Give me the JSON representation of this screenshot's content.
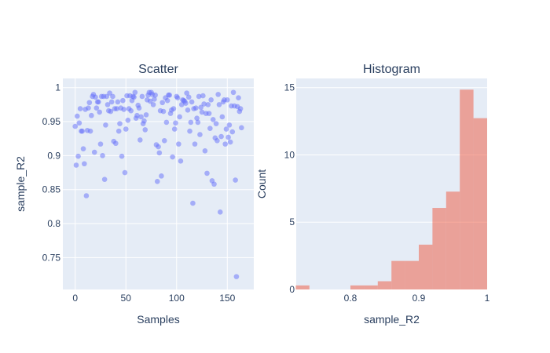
{
  "chart_data": [
    {
      "type": "scatter",
      "title": "Scatter",
      "xlabel": "Samples",
      "ylabel": "sample_R2",
      "xlim": [
        -12,
        176
      ],
      "ylim": [
        0.705,
        1.014
      ],
      "xticks": [
        0,
        50,
        100,
        150
      ],
      "xtick_labels": [
        "0",
        "50",
        "100",
        "150"
      ],
      "yticks": [
        0.75,
        0.8,
        0.85,
        0.9,
        0.95,
        1
      ],
      "ytick_labels": [
        "0.75",
        "0.8",
        "0.85",
        "0.9",
        "0.95",
        "1"
      ],
      "grid": true,
      "marker_color": "#636efa",
      "marker_opacity": 0.5,
      "x": [
        0,
        1,
        2,
        3,
        4,
        5,
        6,
        7,
        8,
        9,
        10,
        11,
        12,
        13,
        14,
        15,
        16,
        17,
        18,
        19,
        20,
        21,
        22,
        23,
        24,
        25,
        26,
        27,
        28,
        29,
        30,
        31,
        32,
        33,
        34,
        35,
        36,
        37,
        38,
        39,
        40,
        41,
        42,
        43,
        44,
        45,
        46,
        47,
        48,
        49,
        50,
        51,
        52,
        53,
        54,
        55,
        56,
        57,
        58,
        59,
        60,
        61,
        62,
        63,
        64,
        65,
        66,
        67,
        68,
        69,
        70,
        71,
        72,
        73,
        74,
        75,
        76,
        77,
        78,
        79,
        80,
        81,
        82,
        83,
        84,
        85,
        86,
        87,
        88,
        89,
        90,
        91,
        92,
        93,
        94,
        95,
        96,
        97,
        98,
        99,
        100,
        101,
        102,
        103,
        104,
        105,
        106,
        107,
        108,
        109,
        110,
        111,
        112,
        113,
        114,
        115,
        116,
        117,
        118,
        119,
        120,
        121,
        122,
        123,
        124,
        125,
        126,
        127,
        128,
        129,
        130,
        131,
        132,
        133,
        134,
        135,
        136,
        137,
        138,
        139,
        140,
        141,
        142,
        143,
        144,
        145,
        146,
        147,
        148,
        149,
        150,
        151,
        152,
        153,
        154,
        155,
        156,
        157,
        158,
        159,
        160,
        161,
        162,
        163,
        164
      ],
      "y": [
        0.943,
        0.886,
        0.958,
        0.899,
        0.948,
        0.969,
        0.936,
        0.936,
        0.91,
        0.888,
        0.968,
        0.841,
        0.937,
        0.97,
        0.978,
        0.936,
        0.959,
        0.987,
        0.99,
        0.905,
        0.986,
        0.97,
        0.979,
        0.979,
        0.964,
        0.917,
        0.987,
        0.9,
        0.987,
        0.865,
        0.945,
        0.987,
        0.975,
        0.966,
        0.992,
        0.965,
        0.979,
        0.987,
        0.921,
        0.969,
        0.918,
        0.969,
        0.979,
        0.936,
        0.947,
        0.97,
        0.899,
        0.981,
        0.968,
        0.875,
        0.939,
        0.988,
        0.952,
        0.969,
        0.988,
        0.966,
        0.981,
        0.987,
        0.986,
        0.993,
        0.955,
        0.959,
        0.974,
        0.97,
        0.923,
        0.957,
        0.987,
        0.947,
        0.951,
        0.938,
        0.96,
        0.982,
        0.989,
        0.993,
        0.98,
        0.993,
        0.99,
        0.975,
        0.983,
        0.989,
        0.916,
        0.862,
        0.913,
        0.904,
        0.966,
        0.87,
        0.978,
        0.965,
        0.922,
        0.985,
        0.949,
        0.981,
        0.989,
        0.989,
        0.962,
        0.967,
        0.898,
        0.969,
        0.939,
        0.948,
        0.987,
        0.985,
        0.917,
        0.957,
        0.892,
        0.975,
        0.982,
        0.981,
        0.98,
        0.977,
        0.992,
        0.967,
        0.986,
        0.936,
        0.949,
        0.979,
        0.83,
        0.969,
        0.917,
        0.97,
        0.955,
        0.949,
        0.987,
        0.931,
        0.971,
        0.964,
        0.988,
        0.976,
        0.907,
        0.962,
        0.874,
        0.975,
        0.962,
        0.94,
        0.982,
        0.863,
        0.953,
        0.858,
        0.926,
        0.947,
        0.922,
        0.99,
        0.975,
        0.817,
        0.928,
        0.957,
        0.979,
        0.982,
        0.917,
        0.939,
        0.982,
        0.927,
        0.945,
        0.92,
        0.973,
        0.935,
        0.993,
        0.973,
        0.864,
        0.722,
        0.972,
        0.985,
        0.965,
        0.969,
        0.941
      ]
    },
    {
      "type": "bar",
      "subtype": "histogram",
      "title": "Histogram",
      "xlabel": "sample_R2",
      "ylabel": "Count",
      "xlim": [
        0.72,
        1.0
      ],
      "ylim": [
        0,
        15.6
      ],
      "xticks": [
        0.8,
        0.9,
        1
      ],
      "xtick_labels": [
        "0.8",
        "0.9",
        "1"
      ],
      "yticks": [
        0,
        5,
        10,
        15
      ],
      "ytick_labels": [
        "0",
        "5",
        "10",
        "15"
      ],
      "grid": true,
      "bar_color": "#EF553B",
      "bar_opacity": 0.5,
      "bin_width": 0.02,
      "bins": [
        {
          "start": 0.72,
          "end": 0.74,
          "value": 0.3
        },
        {
          "start": 0.74,
          "end": 0.76,
          "value": 0
        },
        {
          "start": 0.76,
          "end": 0.78,
          "value": 0
        },
        {
          "start": 0.78,
          "end": 0.8,
          "value": 0
        },
        {
          "start": 0.8,
          "end": 0.82,
          "value": 0.3
        },
        {
          "start": 0.82,
          "end": 0.84,
          "value": 0.3
        },
        {
          "start": 0.84,
          "end": 0.86,
          "value": 0.61
        },
        {
          "start": 0.86,
          "end": 0.88,
          "value": 2.12
        },
        {
          "start": 0.88,
          "end": 0.9,
          "value": 2.12
        },
        {
          "start": 0.9,
          "end": 0.92,
          "value": 3.33
        },
        {
          "start": 0.92,
          "end": 0.94,
          "value": 6.06
        },
        {
          "start": 0.94,
          "end": 0.96,
          "value": 7.27
        },
        {
          "start": 0.96,
          "end": 0.98,
          "value": 14.85
        },
        {
          "start": 0.98,
          "end": 1.0,
          "value": 12.73
        }
      ]
    }
  ],
  "colors": {
    "plot_bg": "#e5ecf6",
    "grid": "#ffffff",
    "text": "#2a3f5f",
    "scatter_marker": "#636efa",
    "hist_bar": "#EF553B"
  }
}
